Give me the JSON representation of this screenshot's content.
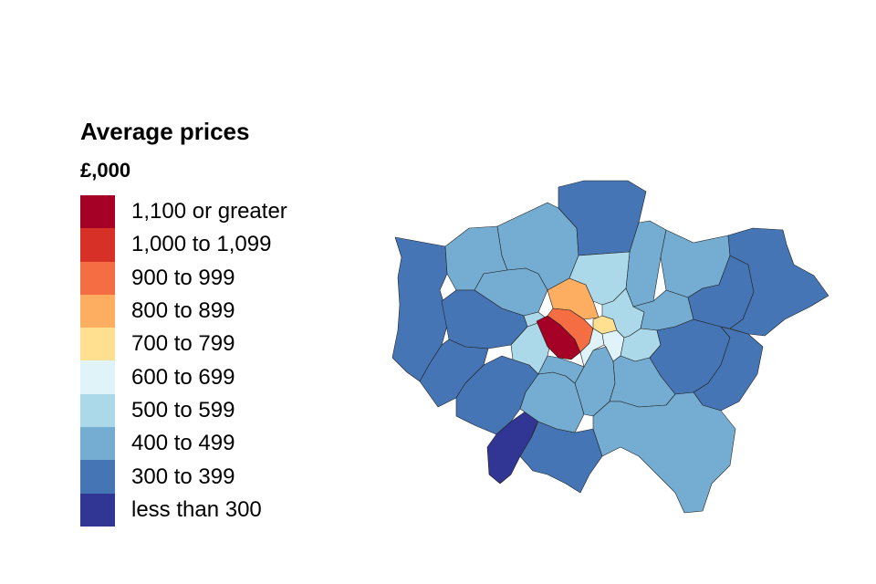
{
  "legend": {
    "title": "Average prices",
    "subtitle": "£,000",
    "items": [
      {
        "label": "1,100 or greater",
        "color": "#a50026"
      },
      {
        "label": "1,000 to 1,099",
        "color": "#d73027"
      },
      {
        "label": "900 to 999",
        "color": "#f46d43"
      },
      {
        "label": "800 to 899",
        "color": "#fdae61"
      },
      {
        "label": "700 to 799",
        "color": "#fee090"
      },
      {
        "label": "600 to 699",
        "color": "#e0f3f8"
      },
      {
        "label": "500 to 599",
        "color": "#abd9e9"
      },
      {
        "label": "400 to 499",
        "color": "#74add1"
      },
      {
        "label": "300 to 399",
        "color": "#4575b4"
      },
      {
        "label": "less than 300",
        "color": "#313695"
      }
    ]
  },
  "map": {
    "regions": [
      {
        "band": 8
      },
      {
        "band": 7
      },
      {
        "band": 7
      },
      {
        "band": 8
      },
      {
        "band": 7
      },
      {
        "band": 7
      },
      {
        "band": 7
      },
      {
        "band": 8
      },
      {
        "band": 8
      },
      {
        "band": 8
      },
      {
        "band": 9
      },
      {
        "band": 8
      },
      {
        "band": 7
      },
      {
        "band": 7
      },
      {
        "band": 6
      },
      {
        "band": 7
      },
      {
        "band": 6
      },
      {
        "band": 3
      },
      {
        "band": 6
      },
      {
        "band": 4
      },
      {
        "band": 0
      },
      {
        "band": 2
      },
      {
        "band": 5
      },
      {
        "band": 5
      },
      {
        "band": 6
      },
      {
        "band": 7
      },
      {
        "band": 6
      },
      {
        "band": 7
      },
      {
        "band": 8
      },
      {
        "band": 8
      },
      {
        "band": 8
      },
      {
        "band": 8
      },
      {
        "band": 7
      }
    ]
  }
}
